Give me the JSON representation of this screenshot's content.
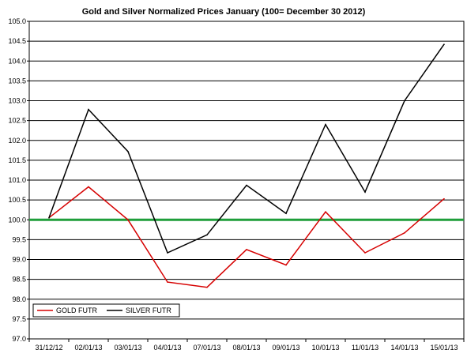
{
  "chart_data": {
    "type": "line",
    "title": "Gold and Silver Normalized Prices January (100= December 30 2012)",
    "xlabel": "",
    "ylabel": "",
    "categories": [
      "31/12/12",
      "02/01/13",
      "03/01/13",
      "04/01/13",
      "07/01/13",
      "08/01/13",
      "09/01/13",
      "10/01/13",
      "11/01/13",
      "14/01/13",
      "15/01/13"
    ],
    "series": [
      {
        "name": "GOLD  FUTR",
        "color": "#d60000",
        "values": [
          100.05,
          100.83,
          100.0,
          98.43,
          98.3,
          99.25,
          98.86,
          100.2,
          99.17,
          99.67,
          100.53
        ]
      },
      {
        "name": "SILVER  FUTR",
        "color": "#000000",
        "values": [
          100.05,
          102.78,
          101.72,
          99.17,
          99.62,
          100.87,
          100.16,
          102.4,
          100.7,
          103.0,
          104.42
        ]
      }
    ],
    "reference_line": {
      "value": 100.0,
      "color": "#1f9e3a"
    },
    "ylim": [
      97.0,
      105.0
    ],
    "ytick_step": 0.5,
    "grid": "horizontal",
    "legend": "bottom-left"
  }
}
